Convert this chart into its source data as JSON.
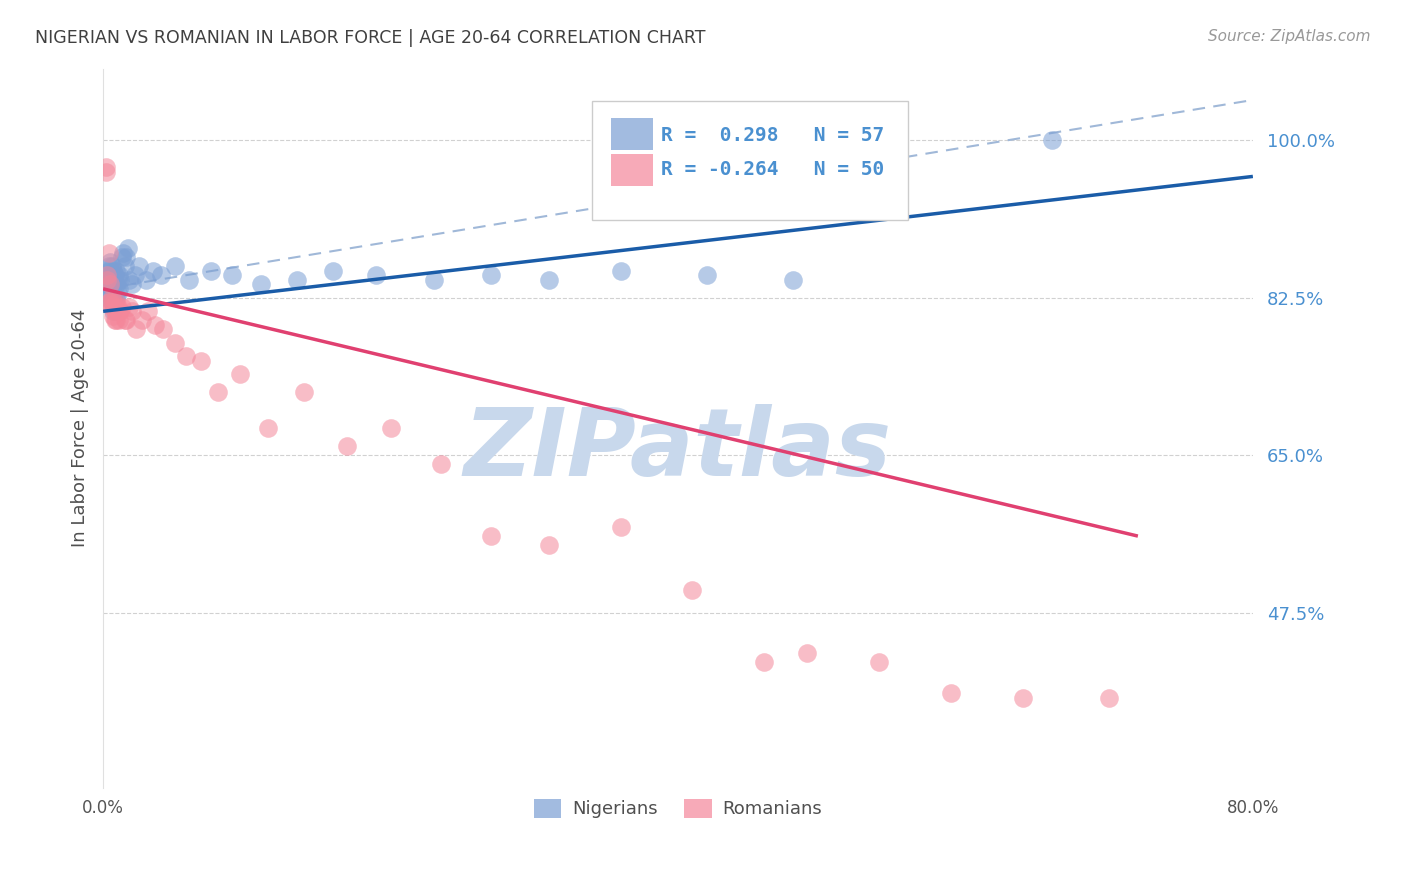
{
  "title": "NIGERIAN VS ROMANIAN IN LABOR FORCE | AGE 20-64 CORRELATION CHART",
  "source": "Source: ZipAtlas.com",
  "ylabel": "In Labor Force | Age 20-64",
  "ytick_values": [
    1.0,
    0.825,
    0.65,
    0.475
  ],
  "xlim": [
    0.0,
    0.8
  ],
  "ylim": [
    0.28,
    1.08
  ],
  "nigerian_R": 0.298,
  "nigerian_N": 57,
  "romanian_R": -0.264,
  "romanian_N": 50,
  "nigerian_color": "#7B9FD4",
  "romanian_color": "#F4879A",
  "nigerian_line_color": "#1A5CA8",
  "romanian_line_color": "#E04070",
  "dashed_line_color": "#A0B8D8",
  "grid_color": "#CCCCCC",
  "background_color": "#FFFFFF",
  "title_color": "#404040",
  "source_color": "#999999",
  "ytick_color": "#4A90D0",
  "xtick_color": "#555555",
  "legend_color": "#4A90D0",
  "watermark_color": "#C8D8EC",
  "nigerian_x": [
    0.002,
    0.002,
    0.003,
    0.003,
    0.003,
    0.004,
    0.004,
    0.004,
    0.005,
    0.005,
    0.005,
    0.006,
    0.006,
    0.006,
    0.006,
    0.007,
    0.007,
    0.007,
    0.007,
    0.008,
    0.008,
    0.008,
    0.009,
    0.009,
    0.009,
    0.01,
    0.01,
    0.011,
    0.011,
    0.012,
    0.013,
    0.014,
    0.015,
    0.016,
    0.017,
    0.018,
    0.02,
    0.022,
    0.025,
    0.03,
    0.035,
    0.04,
    0.05,
    0.06,
    0.075,
    0.09,
    0.11,
    0.135,
    0.16,
    0.19,
    0.23,
    0.27,
    0.31,
    0.36,
    0.42,
    0.48,
    0.66
  ],
  "nigerian_y": [
    0.83,
    0.84,
    0.825,
    0.835,
    0.845,
    0.845,
    0.855,
    0.86,
    0.84,
    0.85,
    0.865,
    0.82,
    0.835,
    0.845,
    0.86,
    0.81,
    0.825,
    0.84,
    0.855,
    0.82,
    0.835,
    0.85,
    0.825,
    0.84,
    0.855,
    0.83,
    0.845,
    0.835,
    0.85,
    0.845,
    0.87,
    0.875,
    0.86,
    0.87,
    0.88,
    0.845,
    0.84,
    0.85,
    0.86,
    0.845,
    0.855,
    0.85,
    0.86,
    0.845,
    0.855,
    0.85,
    0.84,
    0.845,
    0.855,
    0.85,
    0.845,
    0.85,
    0.845,
    0.855,
    0.85,
    0.845,
    1.0
  ],
  "romanian_x": [
    0.002,
    0.002,
    0.003,
    0.003,
    0.004,
    0.004,
    0.005,
    0.005,
    0.006,
    0.006,
    0.007,
    0.007,
    0.008,
    0.008,
    0.009,
    0.009,
    0.01,
    0.01,
    0.011,
    0.012,
    0.013,
    0.015,
    0.016,
    0.018,
    0.02,
    0.023,
    0.027,
    0.031,
    0.036,
    0.042,
    0.05,
    0.058,
    0.068,
    0.08,
    0.095,
    0.115,
    0.14,
    0.17,
    0.2,
    0.235,
    0.27,
    0.31,
    0.36,
    0.41,
    0.46,
    0.49,
    0.54,
    0.59,
    0.64,
    0.7
  ],
  "romanian_y": [
    0.965,
    0.97,
    0.845,
    0.85,
    0.875,
    0.82,
    0.84,
    0.82,
    0.825,
    0.815,
    0.805,
    0.82,
    0.81,
    0.8,
    0.82,
    0.8,
    0.81,
    0.815,
    0.8,
    0.81,
    0.815,
    0.8,
    0.8,
    0.815,
    0.81,
    0.79,
    0.8,
    0.81,
    0.795,
    0.79,
    0.775,
    0.76,
    0.755,
    0.72,
    0.74,
    0.68,
    0.72,
    0.66,
    0.68,
    0.64,
    0.56,
    0.55,
    0.57,
    0.5,
    0.42,
    0.43,
    0.42,
    0.385,
    0.38,
    0.38
  ],
  "nigerian_line_x": [
    0.0,
    0.8
  ],
  "nigerian_line_y": [
    0.81,
    0.96
  ],
  "romanian_line_x": [
    0.0,
    0.72
  ],
  "romanian_line_y": [
    0.835,
    0.56
  ],
  "dashed_line_x": [
    0.0,
    0.8
  ],
  "dashed_line_y": [
    0.835,
    1.045
  ]
}
